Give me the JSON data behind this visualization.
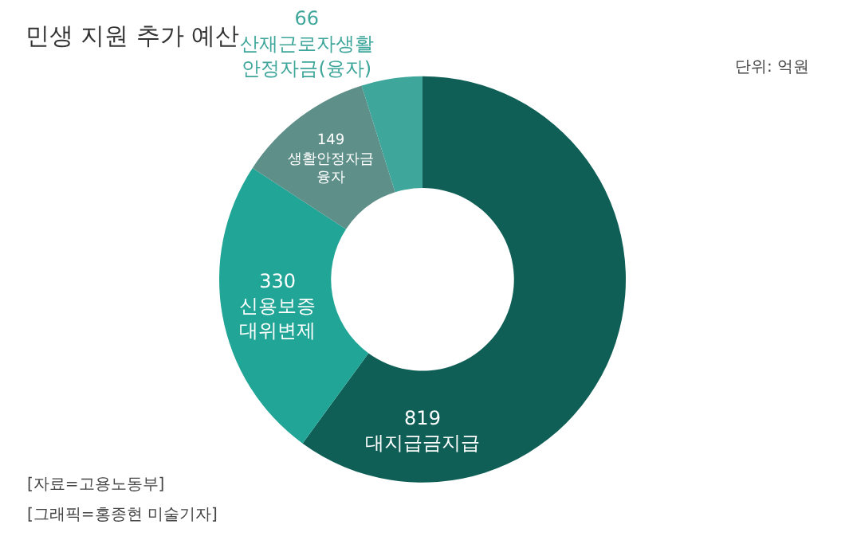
{
  "chart_data": {
    "type": "donut",
    "title": "민생 지원 추가 예산",
    "categories": [
      "대지급금지급",
      "신용보증 대위변제",
      "생활안정자금 융자",
      "산재근로자생활 안정자금(융자)"
    ],
    "values": [
      819,
      330,
      149,
      66
    ],
    "colors": [
      "#0f5f57",
      "#20a596",
      "#5f8f89",
      "#3ea69a"
    ],
    "data_labels": true,
    "legend": false,
    "annotations": [
      "단위: 억원",
      "[자료=고용노동부]",
      "[그래픽=홍종현 미술기자]"
    ]
  }
}
